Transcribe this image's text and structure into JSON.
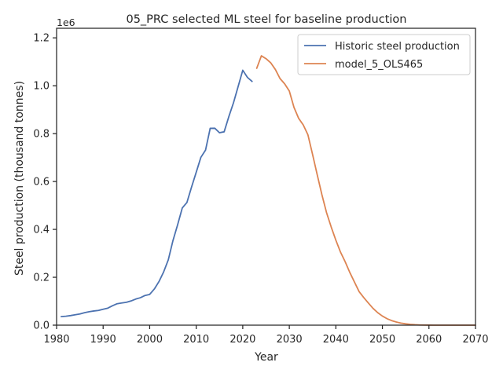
{
  "chart_data": {
    "type": "line",
    "title": "05_PRC selected ML steel for baseline production",
    "xlabel": "Year",
    "ylabel": "Steel production (thousand tonnes)",
    "y_offset_label": "1e6",
    "xlim": [
      1980,
      2070
    ],
    "ylim": [
      0,
      1240000
    ],
    "grid": false,
    "legend_position": "top-right",
    "x_ticks": [
      1980,
      1990,
      2000,
      2010,
      2020,
      2030,
      2040,
      2050,
      2060,
      2070
    ],
    "x_tick_labels": [
      "1980",
      "1990",
      "2000",
      "2010",
      "2020",
      "2030",
      "2040",
      "2050",
      "2060",
      "2070"
    ],
    "y_ticks": [
      0,
      200000,
      400000,
      600000,
      800000,
      1000000,
      1200000
    ],
    "y_tick_labels": [
      "0.0",
      "0.2",
      "0.4",
      "0.6",
      "0.8",
      "1.0",
      "1.2"
    ],
    "series": [
      {
        "name": "Historic steel production",
        "color": "#4c72b0",
        "x": [
          1981,
          1982,
          1983,
          1984,
          1985,
          1986,
          1987,
          1988,
          1989,
          1990,
          1991,
          1992,
          1993,
          1994,
          1995,
          1996,
          1997,
          1998,
          1999,
          2000,
          2001,
          2002,
          2003,
          2004,
          2005,
          2006,
          2007,
          2008,
          2009,
          2010,
          2011,
          2012,
          2013,
          2014,
          2015,
          2016,
          2017,
          2018,
          2019,
          2020,
          2021,
          2022
        ],
        "y": [
          35600,
          37200,
          40000,
          43500,
          46800,
          52200,
          56300,
          59200,
          61600,
          66400,
          71000,
          80900,
          89500,
          92600,
          95400,
          101200,
          108900,
          114600,
          124000,
          128500,
          151000,
          182200,
          222300,
          272800,
          353200,
          419100,
          489300,
          512300,
          577100,
          638700,
          701000,
          731000,
          822000,
          822300,
          803800,
          807600,
          870700,
          928300,
          996300,
          1064700,
          1035000,
          1018000
        ]
      },
      {
        "name": "model_5_OLS465",
        "color": "#dd8452",
        "x": [
          2023,
          2024,
          2025,
          2026,
          2027,
          2028,
          2029,
          2030,
          2031,
          2032,
          2033,
          2034,
          2035,
          2036,
          2037,
          2038,
          2039,
          2040,
          2041,
          2042,
          2043,
          2044,
          2045,
          2046,
          2047,
          2048,
          2049,
          2050,
          2051,
          2052,
          2053,
          2054,
          2055,
          2056,
          2057,
          2058,
          2059,
          2060,
          2061,
          2062,
          2063,
          2064,
          2065,
          2066,
          2067,
          2068,
          2069,
          2070
        ],
        "y": [
          1073000,
          1125000,
          1113000,
          1096000,
          1068000,
          1030000,
          1008000,
          978000,
          910000,
          864000,
          836000,
          795000,
          713000,
          628000,
          545000,
          470000,
          410000,
          355000,
          305000,
          265000,
          220000,
          180000,
          140000,
          115000,
          92000,
          70000,
          52000,
          38000,
          27000,
          19000,
          13000,
          8500,
          5500,
          3200,
          1800,
          900,
          400,
          150,
          50,
          0,
          0,
          0,
          0,
          0,
          0,
          0,
          0,
          0
        ]
      }
    ]
  }
}
